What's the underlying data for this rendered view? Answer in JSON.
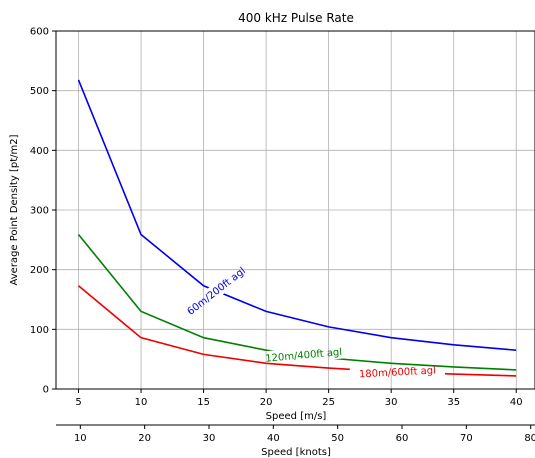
{
  "chart_data": {
    "type": "line",
    "title": "400 kHz Pulse Rate",
    "xlabel": "Speed [m/s]",
    "x2label": "Speed [knots]",
    "ylabel": "Average Point Density [pt/m2]",
    "xlim": [
      3.2,
      41.5
    ],
    "ylim": [
      0,
      600
    ],
    "x_ticks": [
      5,
      10,
      15,
      20,
      25,
      30,
      35,
      40
    ],
    "x2_ticks": [
      10,
      20,
      30,
      40,
      50,
      60,
      70,
      80
    ],
    "y_ticks": [
      0,
      100,
      200,
      300,
      400,
      500,
      600
    ],
    "grid": true,
    "x": [
      5,
      10,
      15,
      20,
      25,
      30,
      35,
      40
    ],
    "series": [
      {
        "name": "60m/200ft agl",
        "color": "#0000ee",
        "values": [
          518,
          259,
          173,
          130,
          104,
          86,
          74,
          65
        ],
        "label_at": 16,
        "label_angle": -38
      },
      {
        "name": "120m/400ft agl",
        "color": "#008000",
        "values": [
          259,
          130,
          86,
          65,
          52,
          43,
          37,
          32
        ],
        "label_at": 23,
        "label_angle": -5
      },
      {
        "name": "180m/600ft agl",
        "color": "#ee0000",
        "values": [
          173,
          86,
          58,
          43,
          35,
          29,
          25,
          22
        ],
        "label_at": 30.5,
        "label_angle": -3
      }
    ]
  }
}
